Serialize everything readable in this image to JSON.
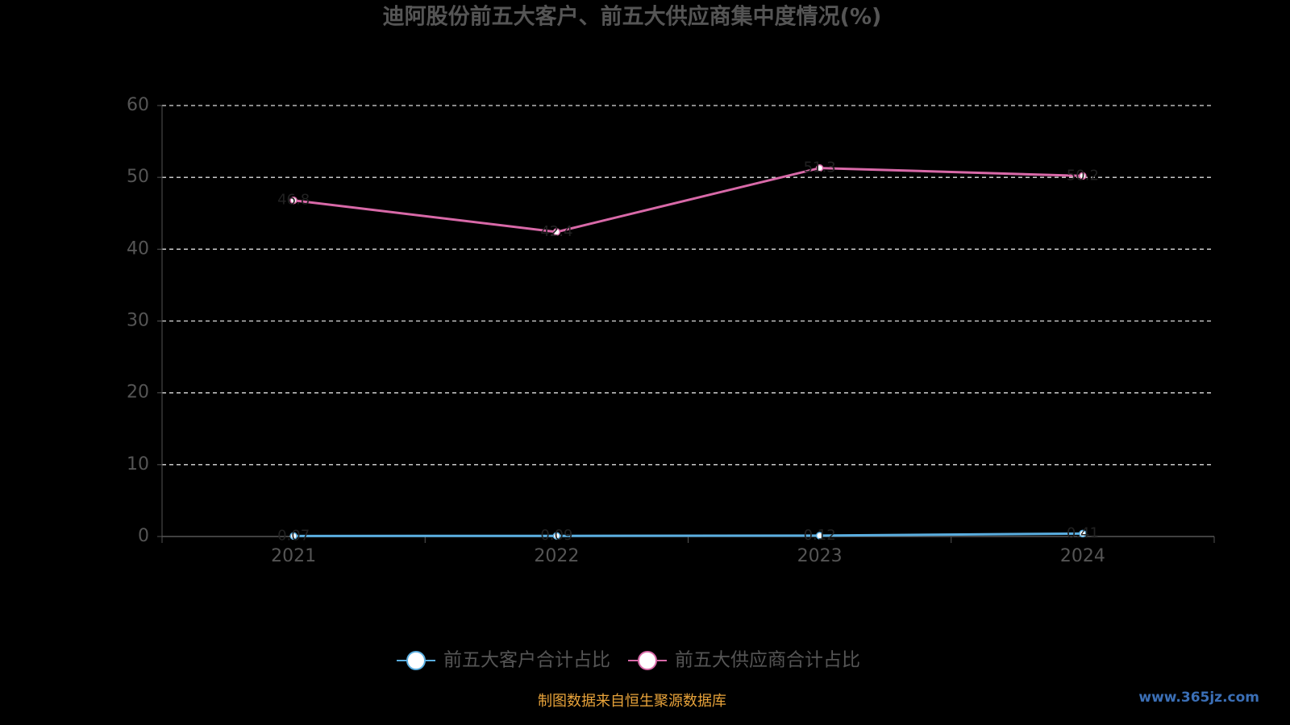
{
  "chart_data": {
    "type": "line",
    "title": "迪阿股份前五大客户、前五大供应商集中度情况(%)",
    "categories": [
      "2021",
      "2022",
      "2023",
      "2024"
    ],
    "series": [
      {
        "name": "前五大客户合计占比",
        "color": "#5aaee0",
        "values": [
          0.07,
          0.09,
          0.12,
          0.41
        ]
      },
      {
        "name": "前五大供应商合计占比",
        "color": "#d869a8",
        "values": [
          46.8,
          42.4,
          51.3,
          50.2
        ]
      }
    ],
    "ylim": [
      0,
      60
    ],
    "yticks": [
      0,
      10,
      20,
      30,
      40,
      50,
      60
    ],
    "grid": true,
    "legend": "bottom",
    "source": "制图数据来自恒生聚源数据库",
    "watermark": "www.365jz.com"
  }
}
